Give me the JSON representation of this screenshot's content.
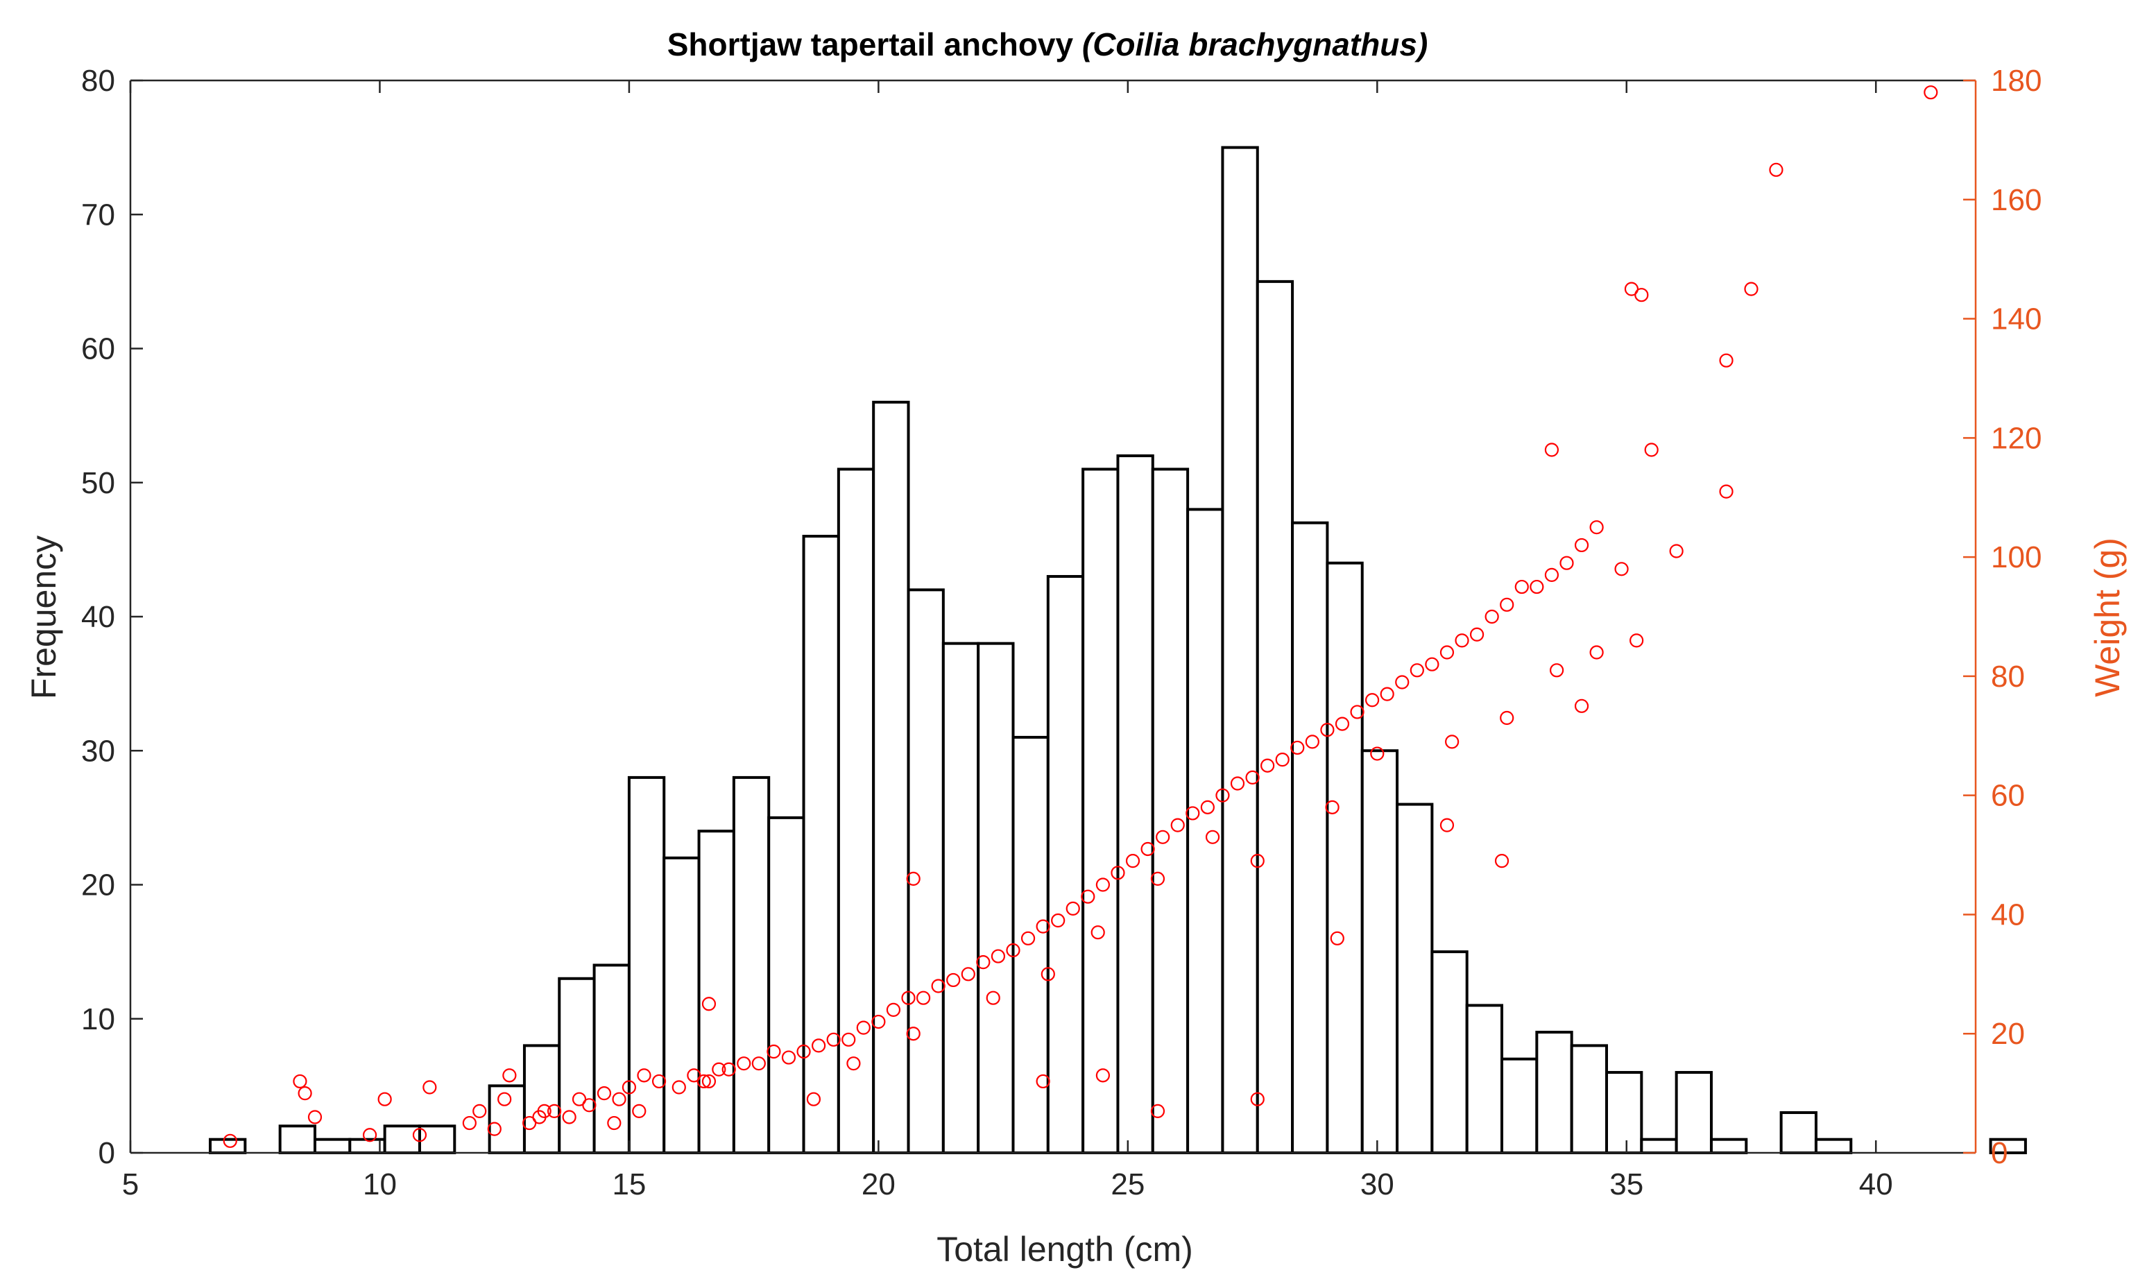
{
  "chart_data": {
    "type": "bar",
    "title_prefix": "Shortjaw tapertail anchovy ",
    "title_species": "(Coilia brachygnathus)",
    "xlabel": "Total length (cm)",
    "ylabel_left": "Frequency",
    "ylabel_right": "Weight (g)",
    "xlim": [
      5,
      42
    ],
    "ylim_left": [
      0,
      80
    ],
    "ylim_right": [
      0,
      180
    ],
    "xticks": [
      5,
      10,
      15,
      20,
      25,
      30,
      35,
      40
    ],
    "yticks_left": [
      0,
      10,
      20,
      30,
      40,
      50,
      60,
      70,
      80
    ],
    "yticks_right": [
      0,
      20,
      40,
      60,
      80,
      100,
      120,
      140,
      160,
      180
    ],
    "right_axis_color": "#E8561F",
    "scatter_color": "#FF0000",
    "bar_color": "#000000",
    "histogram": {
      "series_name": "Frequency",
      "bin_width": 0.7,
      "bin_start": 6.6,
      "counts": [
        1,
        0,
        2,
        1,
        1,
        2,
        2,
        0,
        5,
        8,
        13,
        14,
        28,
        22,
        24,
        28,
        25,
        46,
        51,
        56,
        42,
        38,
        38,
        31,
        43,
        51,
        52,
        51,
        48,
        75,
        65,
        47,
        44,
        30,
        26,
        15,
        11,
        7,
        9,
        8,
        6,
        1,
        6,
        1,
        0,
        3,
        1,
        0,
        0,
        0,
        0,
        1
      ]
    },
    "scatter": {
      "series_name": "Weight (g)",
      "x": [
        7.0,
        8.4,
        8.5,
        8.7,
        9.8,
        10.1,
        10.8,
        11.0,
        11.8,
        12.0,
        12.3,
        12.5,
        12.6,
        13.0,
        13.2,
        13.5,
        13.8,
        14.0,
        14.2,
        14.5,
        14.8,
        15.0,
        15.3,
        15.6,
        16.0,
        16.3,
        16.5,
        16.8,
        17.0,
        17.3,
        17.6,
        17.9,
        18.2,
        18.5,
        18.8,
        19.1,
        19.4,
        19.7,
        20.0,
        20.3,
        20.6,
        20.9,
        21.2,
        21.5,
        21.8,
        22.1,
        22.4,
        22.7,
        23.0,
        23.3,
        23.6,
        23.9,
        24.2,
        24.5,
        24.8,
        25.1,
        25.4,
        25.7,
        26.0,
        26.3,
        26.6,
        26.9,
        27.2,
        27.5,
        27.8,
        28.1,
        28.4,
        28.7,
        29.0,
        29.3,
        29.6,
        29.9,
        30.2,
        30.5,
        30.8,
        31.1,
        31.4,
        31.7,
        32.0,
        32.3,
        32.6,
        32.9,
        33.2,
        33.5,
        33.8,
        34.1,
        34.4,
        34.9,
        35.1,
        35.3,
        35.5,
        36.0,
        37.0,
        37.5,
        38.0,
        41.1,
        14.7,
        15.2,
        16.6,
        18.7,
        19.5,
        20.7,
        22.3,
        23.4,
        24.4,
        25.6,
        26.7,
        27.6,
        29.1,
        30.0,
        31.5,
        32.6,
        33.6,
        34.4,
        35.2,
        37.0,
        16.6,
        20.7,
        13.3,
        23.3,
        24.5,
        25.6,
        27.6,
        29.2,
        31.4,
        32.5,
        33.5,
        34.1
      ],
      "y": [
        2,
        12,
        10,
        6,
        3,
        9,
        3,
        11,
        5,
        7,
        4,
        9,
        13,
        5,
        6,
        7,
        6,
        9,
        8,
        10,
        9,
        11,
        13,
        12,
        11,
        13,
        12,
        14,
        14,
        15,
        15,
        17,
        16,
        17,
        18,
        19,
        19,
        21,
        22,
        24,
        26,
        26,
        28,
        29,
        30,
        32,
        33,
        34,
        36,
        38,
        39,
        41,
        43,
        45,
        47,
        49,
        51,
        53,
        55,
        57,
        58,
        60,
        62,
        63,
        65,
        66,
        68,
        69,
        71,
        72,
        74,
        76,
        77,
        79,
        81,
        82,
        84,
        86,
        87,
        90,
        92,
        95,
        95,
        97,
        99,
        102,
        105,
        98,
        145,
        144,
        118,
        101,
        133,
        145,
        165,
        178,
        5,
        7,
        12,
        9,
        15,
        20,
        26,
        30,
        37,
        46,
        53,
        49,
        58,
        67,
        69,
        73,
        81,
        84,
        86,
        111,
        25,
        46,
        7,
        12,
        13,
        7,
        9,
        36,
        55,
        49,
        118,
        75
      ]
    }
  }
}
